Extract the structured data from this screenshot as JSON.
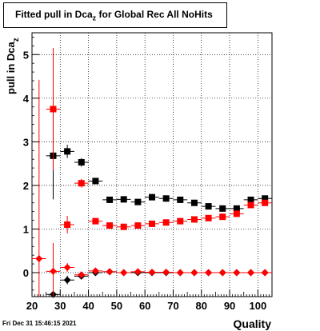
{
  "title": {
    "main": "Fitted pull in Dca",
    "sub": "z",
    "rest": " for Global Rec All NoHits"
  },
  "footer": {
    "date": "Fri Dec 31 15:46:15 2021"
  },
  "chart_data": {
    "type": "scatter",
    "xlabel": "Quality",
    "ylabel": {
      "main": "pull in Dca",
      "sub": "z"
    },
    "xlim": [
      20,
      105
    ],
    "ylim": [
      -0.55,
      5.5
    ],
    "xticks": [
      20,
      30,
      40,
      50,
      60,
      70,
      80,
      90,
      100
    ],
    "yticks": [
      0,
      1,
      2,
      3,
      4,
      5
    ],
    "grid": true,
    "colors": {
      "black": "#000000",
      "red": "#ff0000"
    },
    "series": [
      {
        "color": "#000000",
        "marker": "square",
        "points": [
          {
            "x": 27.5,
            "y": 2.68,
            "err": 1.0
          },
          {
            "x": 32.5,
            "y": 2.78,
            "err": 0.15
          },
          {
            "x": 37.5,
            "y": 2.53,
            "err": 0.1
          },
          {
            "x": 42.5,
            "y": 2.1,
            "err": 0
          },
          {
            "x": 47.5,
            "y": 1.67,
            "err": 0
          },
          {
            "x": 52.5,
            "y": 1.68,
            "err": 0
          },
          {
            "x": 57.5,
            "y": 1.62,
            "err": 0
          },
          {
            "x": 62.5,
            "y": 1.73,
            "err": 0
          },
          {
            "x": 67.5,
            "y": 1.7,
            "err": 0
          },
          {
            "x": 72.5,
            "y": 1.67,
            "err": 0
          },
          {
            "x": 77.5,
            "y": 1.6,
            "err": 0
          },
          {
            "x": 82.5,
            "y": 1.52,
            "err": 0
          },
          {
            "x": 87.5,
            "y": 1.47,
            "err": 0
          },
          {
            "x": 92.5,
            "y": 1.47,
            "err": 0
          },
          {
            "x": 97.5,
            "y": 1.67,
            "err": 0
          },
          {
            "x": 102.5,
            "y": 1.7,
            "err": 0
          }
        ]
      },
      {
        "color": "#ff0000",
        "marker": "square",
        "points": [
          {
            "x": 27.5,
            "y": 3.75,
            "err": 1.4
          },
          {
            "x": 32.5,
            "y": 1.1,
            "err": 0.2
          },
          {
            "x": 37.5,
            "y": 2.05,
            "err": 0.1
          },
          {
            "x": 42.5,
            "y": 1.18,
            "err": 0
          },
          {
            "x": 47.5,
            "y": 1.08,
            "err": 0
          },
          {
            "x": 52.5,
            "y": 1.05,
            "err": 0
          },
          {
            "x": 57.5,
            "y": 1.08,
            "err": 0
          },
          {
            "x": 62.5,
            "y": 1.12,
            "err": 0
          },
          {
            "x": 67.5,
            "y": 1.15,
            "err": 0
          },
          {
            "x": 72.5,
            "y": 1.18,
            "err": 0
          },
          {
            "x": 77.5,
            "y": 1.22,
            "err": 0
          },
          {
            "x": 82.5,
            "y": 1.25,
            "err": 0
          },
          {
            "x": 87.5,
            "y": 1.28,
            "err": 0
          },
          {
            "x": 92.5,
            "y": 1.35,
            "err": 0
          },
          {
            "x": 97.5,
            "y": 1.55,
            "err": 0
          },
          {
            "x": 102.5,
            "y": 1.6,
            "err": 0
          }
        ]
      },
      {
        "color": "#000000",
        "marker": "diamond",
        "points": [
          {
            "x": 27.5,
            "y": -0.5,
            "err": 0
          },
          {
            "x": 32.5,
            "y": -0.17,
            "err": 0.1
          },
          {
            "x": 37.5,
            "y": -0.08,
            "err": 0.05
          },
          {
            "x": 42.5,
            "y": 0.0,
            "err": 0
          },
          {
            "x": 47.5,
            "y": 0.02,
            "err": 0
          },
          {
            "x": 52.5,
            "y": 0.0,
            "err": 0
          },
          {
            "x": 57.5,
            "y": 0.0,
            "err": 0
          },
          {
            "x": 62.5,
            "y": 0.0,
            "err": 0
          },
          {
            "x": 67.5,
            "y": 0.0,
            "err": 0
          },
          {
            "x": 72.5,
            "y": 0.0,
            "err": 0
          },
          {
            "x": 77.5,
            "y": 0.0,
            "err": 0
          },
          {
            "x": 82.5,
            "y": 0.0,
            "err": 0
          },
          {
            "x": 87.5,
            "y": 0.0,
            "err": 0
          },
          {
            "x": 92.5,
            "y": 0.0,
            "err": 0
          },
          {
            "x": 97.5,
            "y": 0.0,
            "err": 0
          },
          {
            "x": 102.5,
            "y": 0.0,
            "err": 0
          }
        ]
      },
      {
        "color": "#ff0000",
        "marker": "diamond",
        "points": [
          {
            "x": 22.5,
            "y": 0.32,
            "err": 4.1
          },
          {
            "x": 27.5,
            "y": 0.03,
            "err": 0.65
          },
          {
            "x": 32.5,
            "y": 0.12,
            "err": 0.1
          },
          {
            "x": 37.5,
            "y": -0.05,
            "err": 0.05
          },
          {
            "x": 42.5,
            "y": 0.04,
            "err": 0
          },
          {
            "x": 47.5,
            "y": 0.02,
            "err": 0
          },
          {
            "x": 52.5,
            "y": 0.0,
            "err": 0
          },
          {
            "x": 57.5,
            "y": 0.02,
            "err": 0
          },
          {
            "x": 62.5,
            "y": 0.01,
            "err": 0
          },
          {
            "x": 67.5,
            "y": 0.01,
            "err": 0
          },
          {
            "x": 72.5,
            "y": 0.0,
            "err": 0
          },
          {
            "x": 77.5,
            "y": 0.0,
            "err": 0
          },
          {
            "x": 82.5,
            "y": 0.0,
            "err": 0
          },
          {
            "x": 87.5,
            "y": 0.0,
            "err": 0
          },
          {
            "x": 92.5,
            "y": 0.0,
            "err": 0
          },
          {
            "x": 97.5,
            "y": 0.0,
            "err": 0
          },
          {
            "x": 102.5,
            "y": 0.0,
            "err": 0
          }
        ]
      }
    ]
  }
}
